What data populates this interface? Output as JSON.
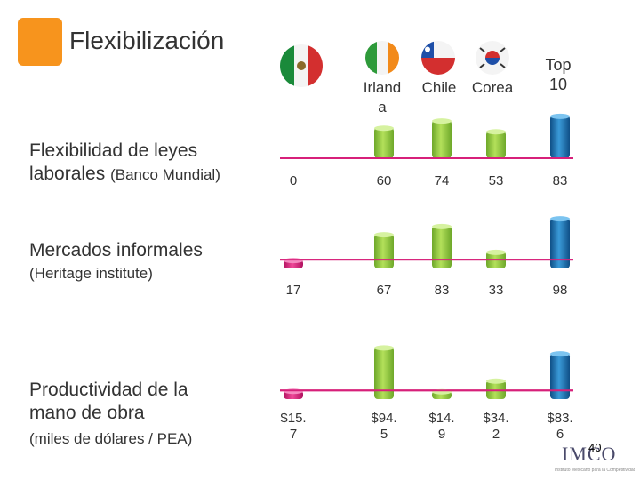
{
  "title": "Flexibilización",
  "colors": {
    "accent_orange": "#F7941D",
    "bar_green": "#8DC63F",
    "bar_blue": "#1B75BC",
    "line_magenta": "#D7207A"
  },
  "countries": [
    {
      "name": "",
      "flag_icon": "mexico-flag-icon"
    },
    {
      "name": "Irland\na",
      "flag_icon": "ireland-flag-icon"
    },
    {
      "name": "Chile",
      "flag_icon": "chile-flag-icon"
    },
    {
      "name": "Corea",
      "flag_icon": "korea-flag-icon"
    },
    {
      "name": "Top\n10",
      "flag_icon": ""
    }
  ],
  "rows": [
    {
      "label": "Flexibilidad de leyes laborales",
      "label_small": "(Banco Mundial)",
      "sub": ""
    },
    {
      "label": "Mercados informales",
      "label_small": "",
      "sub": "(Heritage institute)"
    },
    {
      "label": "Productividad de la mano de obra",
      "label_small": "",
      "sub": "(miles de dólares / PEA)"
    }
  ],
  "chart_data": {
    "type": "bar",
    "categories": [
      "México",
      "Irlanda",
      "Chile",
      "Corea",
      "Top 10"
    ],
    "series": [
      {
        "name": "Flexibilidad de leyes laborales (Banco Mundial)",
        "values": [
          0,
          60,
          74,
          53,
          83
        ],
        "labels": [
          "0",
          "60",
          "74",
          "53",
          "83"
        ]
      },
      {
        "name": "Mercados informales (Heritage institute)",
        "values": [
          17,
          67,
          83,
          33,
          98
        ],
        "labels": [
          "17",
          "67",
          "83",
          "33",
          "98"
        ]
      },
      {
        "name": "Productividad de la mano de obra (miles de dólares / PEA)",
        "values": [
          15.7,
          94.5,
          14.9,
          34.2,
          83.6
        ],
        "labels": [
          "$15.\n7",
          "$94.\n5",
          "$14.\n9",
          "$34.\n2",
          "$83.\n6"
        ]
      }
    ]
  },
  "logo": {
    "text": "IMCO",
    "subtitle": "Instituto Mexicano para la Competitividad"
  },
  "page_number": "40"
}
